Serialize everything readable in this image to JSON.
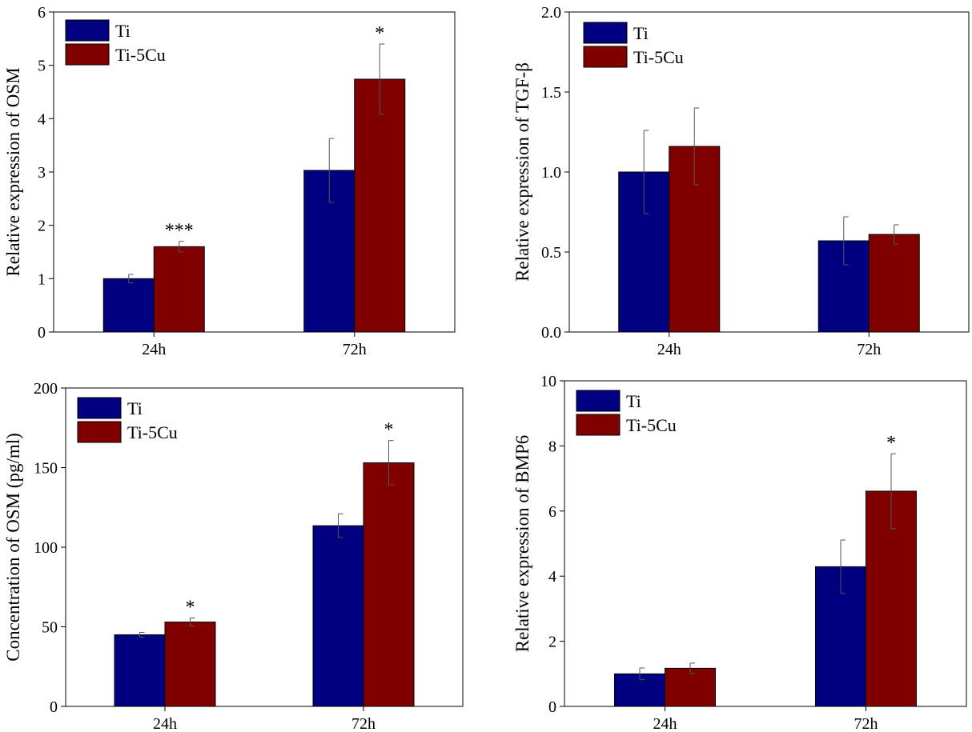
{
  "figure": {
    "name": "four-panel bar chart figure"
  },
  "colors": {
    "Ti": "#000080",
    "Ti-5Cu": "#800000",
    "axis": "#000000"
  },
  "chart_data": [
    {
      "type": "bar",
      "panel": "top-left",
      "title": "",
      "xlabel": "",
      "ylabel": "Relative expression of  OSM",
      "categories": [
        "24h",
        "72h"
      ],
      "ylim": [
        0,
        6
      ],
      "yticks": [
        0,
        1,
        2,
        3,
        4,
        5,
        6
      ],
      "ytick_labels": [
        "0",
        "1",
        "2",
        "3",
        "4",
        "5",
        "6"
      ],
      "series": [
        {
          "name": "Ti",
          "values": [
            1.0,
            3.03
          ],
          "errors": [
            0.08,
            0.6
          ]
        },
        {
          "name": "Ti-5Cu",
          "values": [
            1.6,
            4.74
          ],
          "errors": [
            0.1,
            0.66
          ]
        }
      ],
      "annotations": [
        {
          "category": "24h",
          "series": "Ti-5Cu",
          "text": "***"
        },
        {
          "category": "72h",
          "series": "Ti-5Cu",
          "text": "*"
        }
      ],
      "legend_position": "top-left"
    },
    {
      "type": "bar",
      "panel": "top-right",
      "title": "",
      "xlabel": "",
      "ylabel": "Relative expression of  TGF-β",
      "categories": [
        "24h",
        "72h"
      ],
      "ylim": [
        0,
        2
      ],
      "yticks": [
        0,
        0.5,
        1,
        1.5,
        2
      ],
      "ytick_labels": [
        "0.0",
        "0.5",
        "1.0",
        "1.5",
        "2.0"
      ],
      "series": [
        {
          "name": "Ti",
          "values": [
            1.0,
            0.57
          ],
          "errors": [
            0.26,
            0.15
          ]
        },
        {
          "name": "Ti-5Cu",
          "values": [
            1.16,
            0.61
          ],
          "errors": [
            0.24,
            0.06
          ]
        }
      ],
      "annotations": [],
      "legend_position": "top-left"
    },
    {
      "type": "bar",
      "panel": "bottom-left",
      "title": "",
      "xlabel": "",
      "ylabel": "Concentration of  OSM (pg/ml)",
      "categories": [
        "24h",
        "72h"
      ],
      "ylim": [
        0,
        200
      ],
      "yticks": [
        0,
        50,
        100,
        150,
        200
      ],
      "ytick_labels": [
        "0",
        "50",
        "100",
        "150",
        "200"
      ],
      "series": [
        {
          "name": "Ti",
          "values": [
            45,
            113.5
          ],
          "errors": [
            1.5,
            7.5
          ]
        },
        {
          "name": "Ti-5Cu",
          "values": [
            53,
            153
          ],
          "errors": [
            2.5,
            14
          ]
        }
      ],
      "annotations": [
        {
          "category": "24h",
          "series": "Ti-5Cu",
          "text": "*"
        },
        {
          "category": "72h",
          "series": "Ti-5Cu",
          "text": "*"
        }
      ],
      "legend_position": "top-left"
    },
    {
      "type": "bar",
      "panel": "bottom-right",
      "title": "",
      "xlabel": "",
      "ylabel": "Relative expression of  BMP6",
      "categories": [
        "24h",
        "72h"
      ],
      "ylim": [
        0,
        10
      ],
      "yticks": [
        0,
        2,
        4,
        6,
        8,
        10
      ],
      "ytick_labels": [
        "0",
        "2",
        "4",
        "6",
        "8",
        "10"
      ],
      "series": [
        {
          "name": "Ti",
          "values": [
            1.0,
            4.29
          ],
          "errors": [
            0.18,
            0.82
          ]
        },
        {
          "name": "Ti-5Cu",
          "values": [
            1.17,
            6.61
          ],
          "errors": [
            0.16,
            1.15
          ]
        }
      ],
      "annotations": [
        {
          "category": "72h",
          "series": "Ti-5Cu",
          "text": "*"
        }
      ],
      "legend_position": "top-left"
    }
  ]
}
